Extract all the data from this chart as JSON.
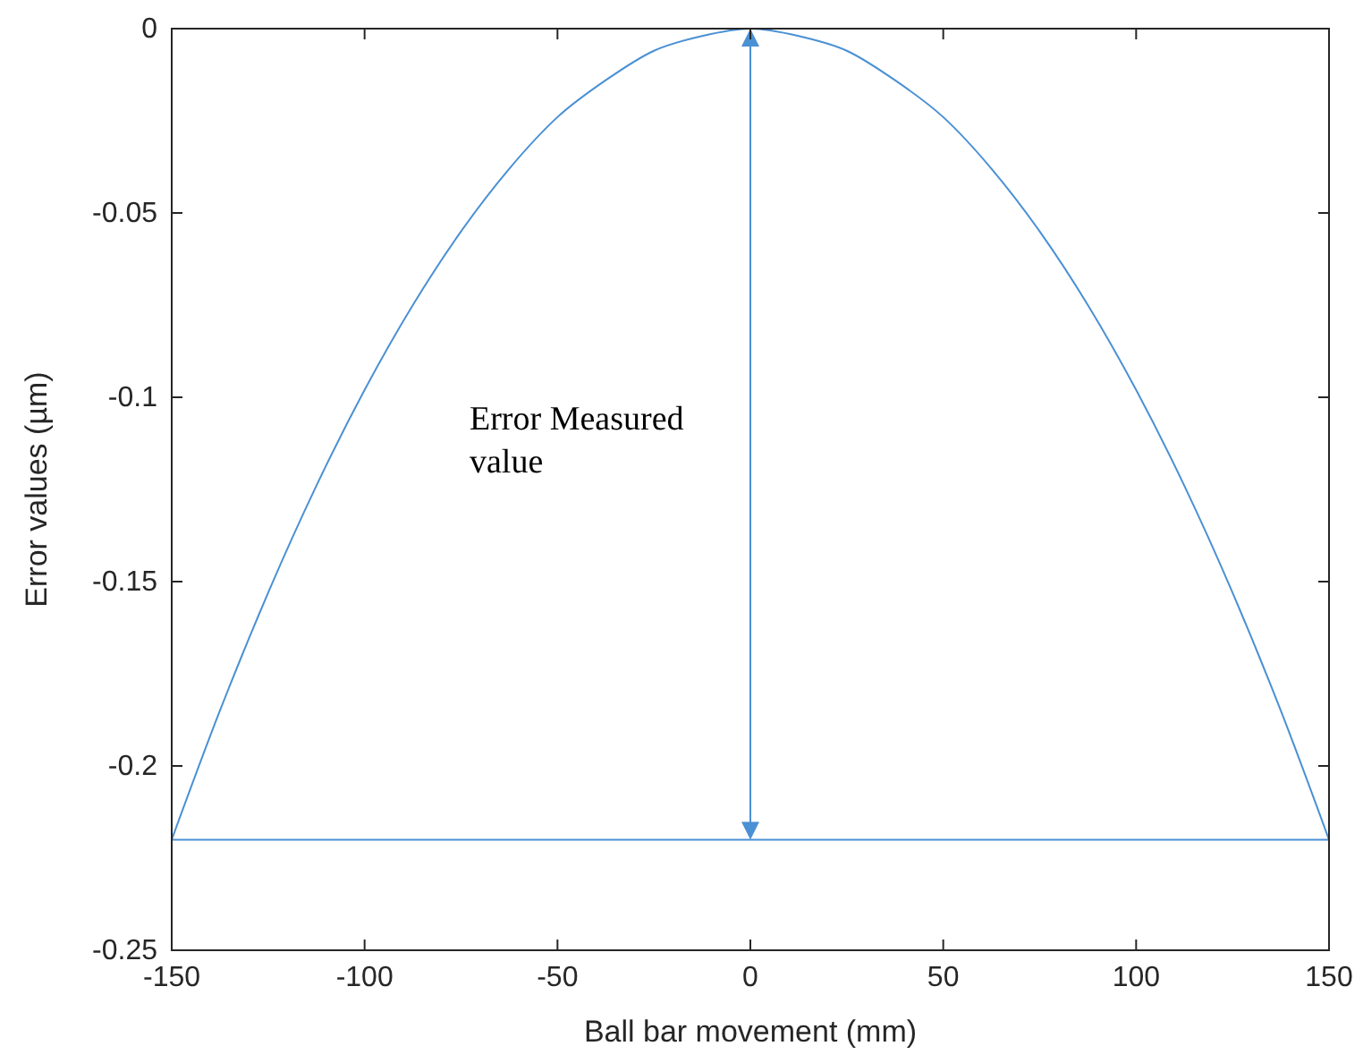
{
  "chart_data": {
    "type": "line",
    "xlabel": "Ball bar movement (mm)",
    "ylabel": "Error values (µm)",
    "x": [
      -150,
      -137.5,
      -125,
      -112.5,
      -100,
      -87.5,
      -75,
      -62.5,
      -50,
      -37.5,
      -25,
      -12.5,
      0,
      12.5,
      25,
      37.5,
      50,
      62.5,
      75,
      87.5,
      100,
      112.5,
      125,
      137.5,
      150
    ],
    "series": [
      {
        "color": "#4a90d4",
        "values": [
          -0.22,
          -0.185,
          -0.153,
          -0.124,
          -0.098,
          -0.075,
          -0.055,
          -0.038,
          -0.024,
          -0.014,
          -0.006,
          -0.002,
          0,
          -0.002,
          -0.006,
          -0.014,
          -0.024,
          -0.038,
          -0.055,
          -0.075,
          -0.098,
          -0.124,
          -0.153,
          -0.185,
          -0.22
        ]
      }
    ],
    "xlim": [
      -150,
      150
    ],
    "ylim": [
      -0.25,
      0
    ],
    "xticks": [
      -150,
      -100,
      -50,
      0,
      50,
      100,
      150
    ],
    "yticks": [
      -0.25,
      -0.2,
      -0.15,
      -0.1,
      -0.05,
      0
    ],
    "ref_lines": [
      {
        "axis": "y",
        "value": -0.22,
        "color": "#4a90d4"
      }
    ],
    "annotations": [
      "Error Measured value"
    ],
    "grid": false,
    "marker": "none",
    "line_style": "solid"
  }
}
